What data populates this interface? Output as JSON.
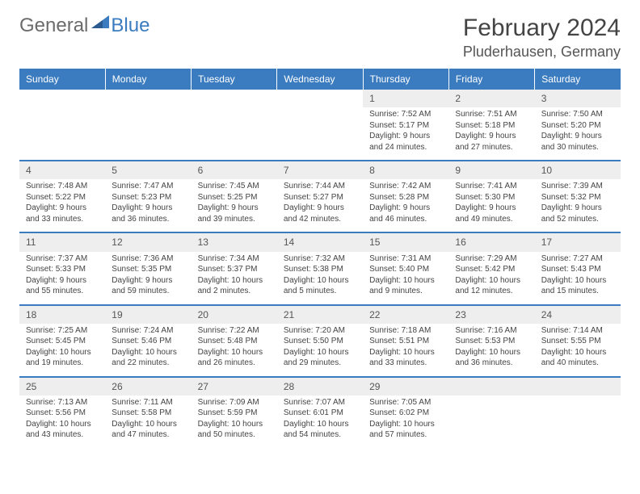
{
  "logo": {
    "text1": "General",
    "text2": "Blue",
    "shape_color": "#3b7bbf"
  },
  "title": "February 2024",
  "location": "Pluderhausen, Germany",
  "header_bg": "#3b7bbf",
  "header_fg": "#ffffff",
  "daynum_bg": "#eeeeee",
  "border_color": "#3b7bbf",
  "weekdays": [
    "Sunday",
    "Monday",
    "Tuesday",
    "Wednesday",
    "Thursday",
    "Friday",
    "Saturday"
  ],
  "weeks": [
    [
      null,
      null,
      null,
      null,
      {
        "n": "1",
        "sr": "Sunrise: 7:52 AM",
        "ss": "Sunset: 5:17 PM",
        "dl": "Daylight: 9 hours and 24 minutes."
      },
      {
        "n": "2",
        "sr": "Sunrise: 7:51 AM",
        "ss": "Sunset: 5:18 PM",
        "dl": "Daylight: 9 hours and 27 minutes."
      },
      {
        "n": "3",
        "sr": "Sunrise: 7:50 AM",
        "ss": "Sunset: 5:20 PM",
        "dl": "Daylight: 9 hours and 30 minutes."
      }
    ],
    [
      {
        "n": "4",
        "sr": "Sunrise: 7:48 AM",
        "ss": "Sunset: 5:22 PM",
        "dl": "Daylight: 9 hours and 33 minutes."
      },
      {
        "n": "5",
        "sr": "Sunrise: 7:47 AM",
        "ss": "Sunset: 5:23 PM",
        "dl": "Daylight: 9 hours and 36 minutes."
      },
      {
        "n": "6",
        "sr": "Sunrise: 7:45 AM",
        "ss": "Sunset: 5:25 PM",
        "dl": "Daylight: 9 hours and 39 minutes."
      },
      {
        "n": "7",
        "sr": "Sunrise: 7:44 AM",
        "ss": "Sunset: 5:27 PM",
        "dl": "Daylight: 9 hours and 42 minutes."
      },
      {
        "n": "8",
        "sr": "Sunrise: 7:42 AM",
        "ss": "Sunset: 5:28 PM",
        "dl": "Daylight: 9 hours and 46 minutes."
      },
      {
        "n": "9",
        "sr": "Sunrise: 7:41 AM",
        "ss": "Sunset: 5:30 PM",
        "dl": "Daylight: 9 hours and 49 minutes."
      },
      {
        "n": "10",
        "sr": "Sunrise: 7:39 AM",
        "ss": "Sunset: 5:32 PM",
        "dl": "Daylight: 9 hours and 52 minutes."
      }
    ],
    [
      {
        "n": "11",
        "sr": "Sunrise: 7:37 AM",
        "ss": "Sunset: 5:33 PM",
        "dl": "Daylight: 9 hours and 55 minutes."
      },
      {
        "n": "12",
        "sr": "Sunrise: 7:36 AM",
        "ss": "Sunset: 5:35 PM",
        "dl": "Daylight: 9 hours and 59 minutes."
      },
      {
        "n": "13",
        "sr": "Sunrise: 7:34 AM",
        "ss": "Sunset: 5:37 PM",
        "dl": "Daylight: 10 hours and 2 minutes."
      },
      {
        "n": "14",
        "sr": "Sunrise: 7:32 AM",
        "ss": "Sunset: 5:38 PM",
        "dl": "Daylight: 10 hours and 5 minutes."
      },
      {
        "n": "15",
        "sr": "Sunrise: 7:31 AM",
        "ss": "Sunset: 5:40 PM",
        "dl": "Daylight: 10 hours and 9 minutes."
      },
      {
        "n": "16",
        "sr": "Sunrise: 7:29 AM",
        "ss": "Sunset: 5:42 PM",
        "dl": "Daylight: 10 hours and 12 minutes."
      },
      {
        "n": "17",
        "sr": "Sunrise: 7:27 AM",
        "ss": "Sunset: 5:43 PM",
        "dl": "Daylight: 10 hours and 15 minutes."
      }
    ],
    [
      {
        "n": "18",
        "sr": "Sunrise: 7:25 AM",
        "ss": "Sunset: 5:45 PM",
        "dl": "Daylight: 10 hours and 19 minutes."
      },
      {
        "n": "19",
        "sr": "Sunrise: 7:24 AM",
        "ss": "Sunset: 5:46 PM",
        "dl": "Daylight: 10 hours and 22 minutes."
      },
      {
        "n": "20",
        "sr": "Sunrise: 7:22 AM",
        "ss": "Sunset: 5:48 PM",
        "dl": "Daylight: 10 hours and 26 minutes."
      },
      {
        "n": "21",
        "sr": "Sunrise: 7:20 AM",
        "ss": "Sunset: 5:50 PM",
        "dl": "Daylight: 10 hours and 29 minutes."
      },
      {
        "n": "22",
        "sr": "Sunrise: 7:18 AM",
        "ss": "Sunset: 5:51 PM",
        "dl": "Daylight: 10 hours and 33 minutes."
      },
      {
        "n": "23",
        "sr": "Sunrise: 7:16 AM",
        "ss": "Sunset: 5:53 PM",
        "dl": "Daylight: 10 hours and 36 minutes."
      },
      {
        "n": "24",
        "sr": "Sunrise: 7:14 AM",
        "ss": "Sunset: 5:55 PM",
        "dl": "Daylight: 10 hours and 40 minutes."
      }
    ],
    [
      {
        "n": "25",
        "sr": "Sunrise: 7:13 AM",
        "ss": "Sunset: 5:56 PM",
        "dl": "Daylight: 10 hours and 43 minutes."
      },
      {
        "n": "26",
        "sr": "Sunrise: 7:11 AM",
        "ss": "Sunset: 5:58 PM",
        "dl": "Daylight: 10 hours and 47 minutes."
      },
      {
        "n": "27",
        "sr": "Sunrise: 7:09 AM",
        "ss": "Sunset: 5:59 PM",
        "dl": "Daylight: 10 hours and 50 minutes."
      },
      {
        "n": "28",
        "sr": "Sunrise: 7:07 AM",
        "ss": "Sunset: 6:01 PM",
        "dl": "Daylight: 10 hours and 54 minutes."
      },
      {
        "n": "29",
        "sr": "Sunrise: 7:05 AM",
        "ss": "Sunset: 6:02 PM",
        "dl": "Daylight: 10 hours and 57 minutes."
      },
      null,
      null
    ]
  ]
}
